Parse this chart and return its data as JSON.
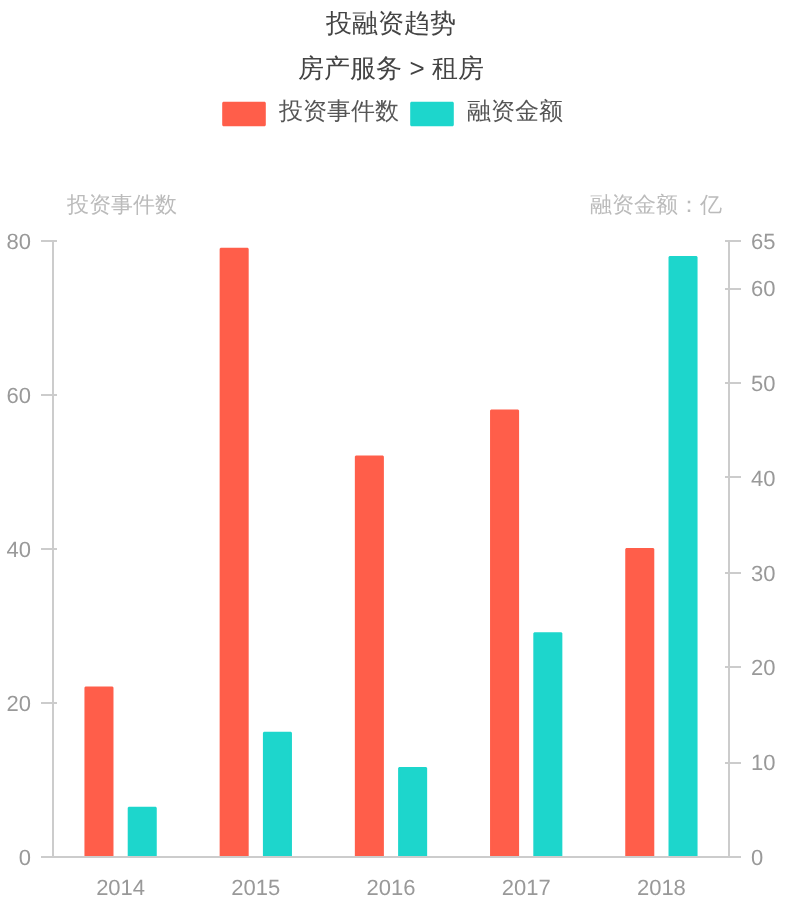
{
  "chart_data": {
    "type": "bar",
    "title": "投融资趋势",
    "subtitle": "房产服务 > 租房",
    "categories": [
      "2014",
      "2015",
      "2016",
      "2017",
      "2018"
    ],
    "series": [
      {
        "name": "投资事件数",
        "color": "#ff5e4a",
        "values": [
          22,
          79,
          52,
          58,
          40
        ]
      },
      {
        "name": "融资金额",
        "color": "#1dd6cc",
        "values": [
          5.2,
          13.1,
          9.4,
          23.6,
          63.3
        ],
        "axis": "y2"
      }
    ],
    "ylabel": "投资事件数",
    "y2label": "融资金额：亿",
    "ylim": [
      0,
      80
    ],
    "yticks": [
      0,
      20,
      40,
      60,
      80
    ],
    "y2lim": [
      0,
      65
    ],
    "y2ticks": [
      0,
      10,
      20,
      30,
      40,
      50,
      60,
      65
    ],
    "grid": false,
    "legend": "top"
  }
}
